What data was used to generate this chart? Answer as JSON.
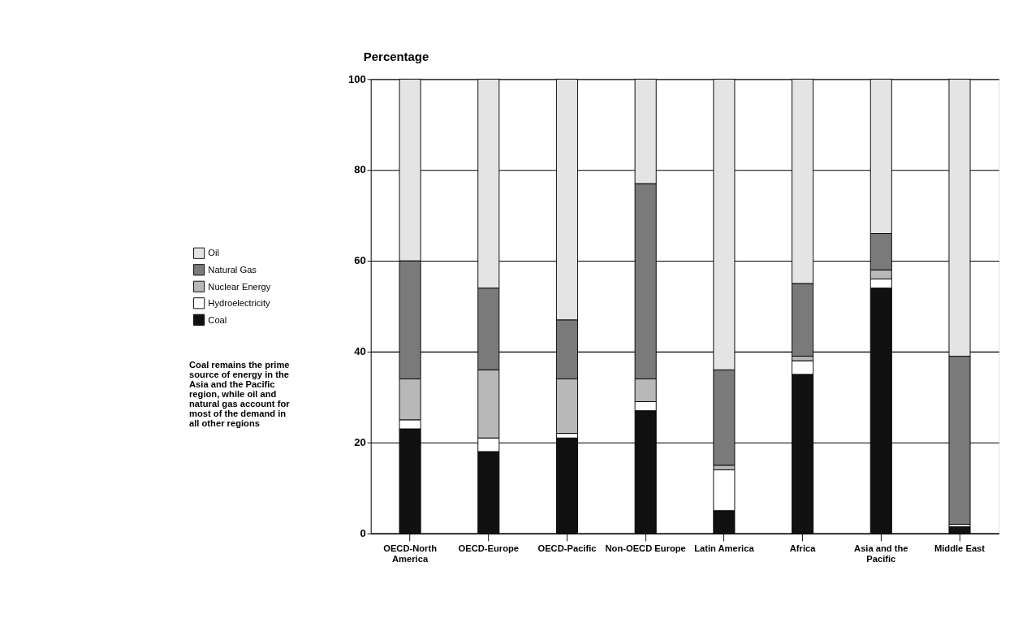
{
  "chart_data": {
    "type": "bar",
    "stacked": true,
    "ylabel": "Percentage",
    "categories": [
      "OECD-North America",
      "OECD-Europe",
      "OECD-Pacific",
      "Non-OECD Europe",
      "Latin America",
      "Africa",
      "Asia and the Pacific",
      "Middle East"
    ],
    "series": [
      {
        "name": "Coal",
        "color": "#111111",
        "values": [
          23,
          18,
          21,
          27,
          5,
          35,
          54,
          1.5
        ]
      },
      {
        "name": "Hydroelectricity",
        "color": "#ffffff",
        "values": [
          2,
          3,
          1,
          2,
          9,
          3,
          2,
          0.5
        ]
      },
      {
        "name": "Nuclear Energy",
        "color": "#b8b8b8",
        "values": [
          9,
          15,
          12,
          5,
          1,
          1,
          2,
          0
        ]
      },
      {
        "name": "Natural Gas",
        "color": "#7a7a7a",
        "values": [
          26,
          18,
          13,
          43,
          21,
          16,
          8,
          37
        ]
      },
      {
        "name": "Oil",
        "color": "#e4e4e4",
        "values": [
          40,
          46,
          53,
          23,
          64,
          45,
          34,
          61
        ]
      }
    ],
    "ylim": [
      0,
      100
    ],
    "yticks": [
      0,
      20,
      40,
      60,
      80,
      100
    ],
    "grid": "y",
    "legend": "left",
    "annotations": [
      "Coal remains the prime source of energy in the Asia and the Pacific region, while oil and natural gas account for most of the demand in all other regions"
    ]
  }
}
